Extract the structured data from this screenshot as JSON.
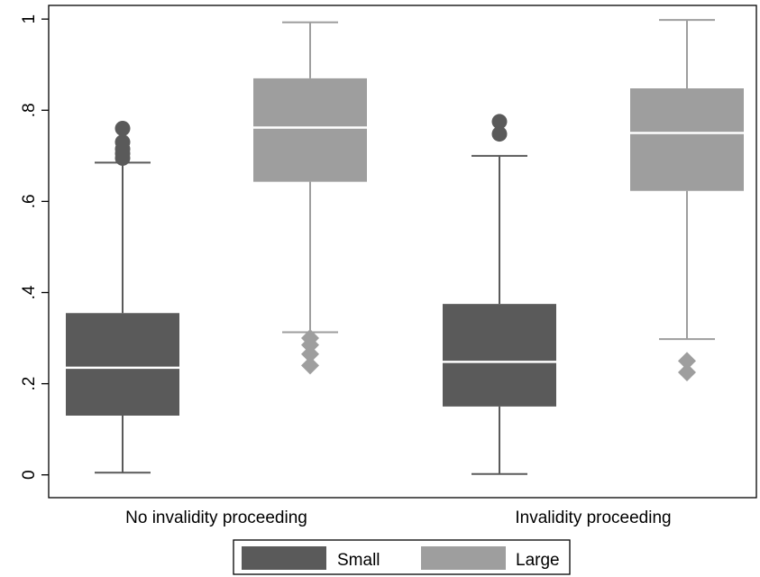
{
  "chart_data": {
    "type": "boxplot",
    "title": "",
    "xlabel": "",
    "ylabel": "",
    "ylim": [
      -0.05,
      1.03
    ],
    "y_ticks": [
      0,
      0.2,
      0.4,
      0.6,
      0.8,
      1
    ],
    "y_tick_labels": [
      "0",
      ".2",
      ".4",
      ".6",
      ".8",
      "1"
    ],
    "grid": false,
    "legend_position": "bottom-center",
    "categories": [
      "No invalidity proceeding",
      "Invalidity proceeding"
    ],
    "series": [
      {
        "name": "Small",
        "color": "#5a5a5a",
        "outlier_marker": "circle",
        "boxes": [
          {
            "whisker_low": 0.005,
            "q1": 0.13,
            "median": 0.235,
            "q3": 0.355,
            "whisker_high": 0.685,
            "outliers": [
              0.695,
              0.705,
              0.715,
              0.73,
              0.76
            ]
          },
          {
            "whisker_low": 0.002,
            "q1": 0.15,
            "median": 0.248,
            "q3": 0.375,
            "whisker_high": 0.7,
            "outliers": [
              0.748,
              0.775
            ]
          }
        ]
      },
      {
        "name": "Large",
        "color": "#9e9e9e",
        "outlier_marker": "diamond",
        "boxes": [
          {
            "whisker_low": 0.313,
            "q1": 0.643,
            "median": 0.762,
            "q3": 0.87,
            "whisker_high": 0.993,
            "outliers": [
              0.24,
              0.265,
              0.285,
              0.3
            ]
          },
          {
            "whisker_low": 0.298,
            "q1": 0.623,
            "median": 0.75,
            "q3": 0.848,
            "whisker_high": 0.998,
            "outliers": [
              0.225,
              0.25
            ]
          }
        ]
      }
    ]
  }
}
